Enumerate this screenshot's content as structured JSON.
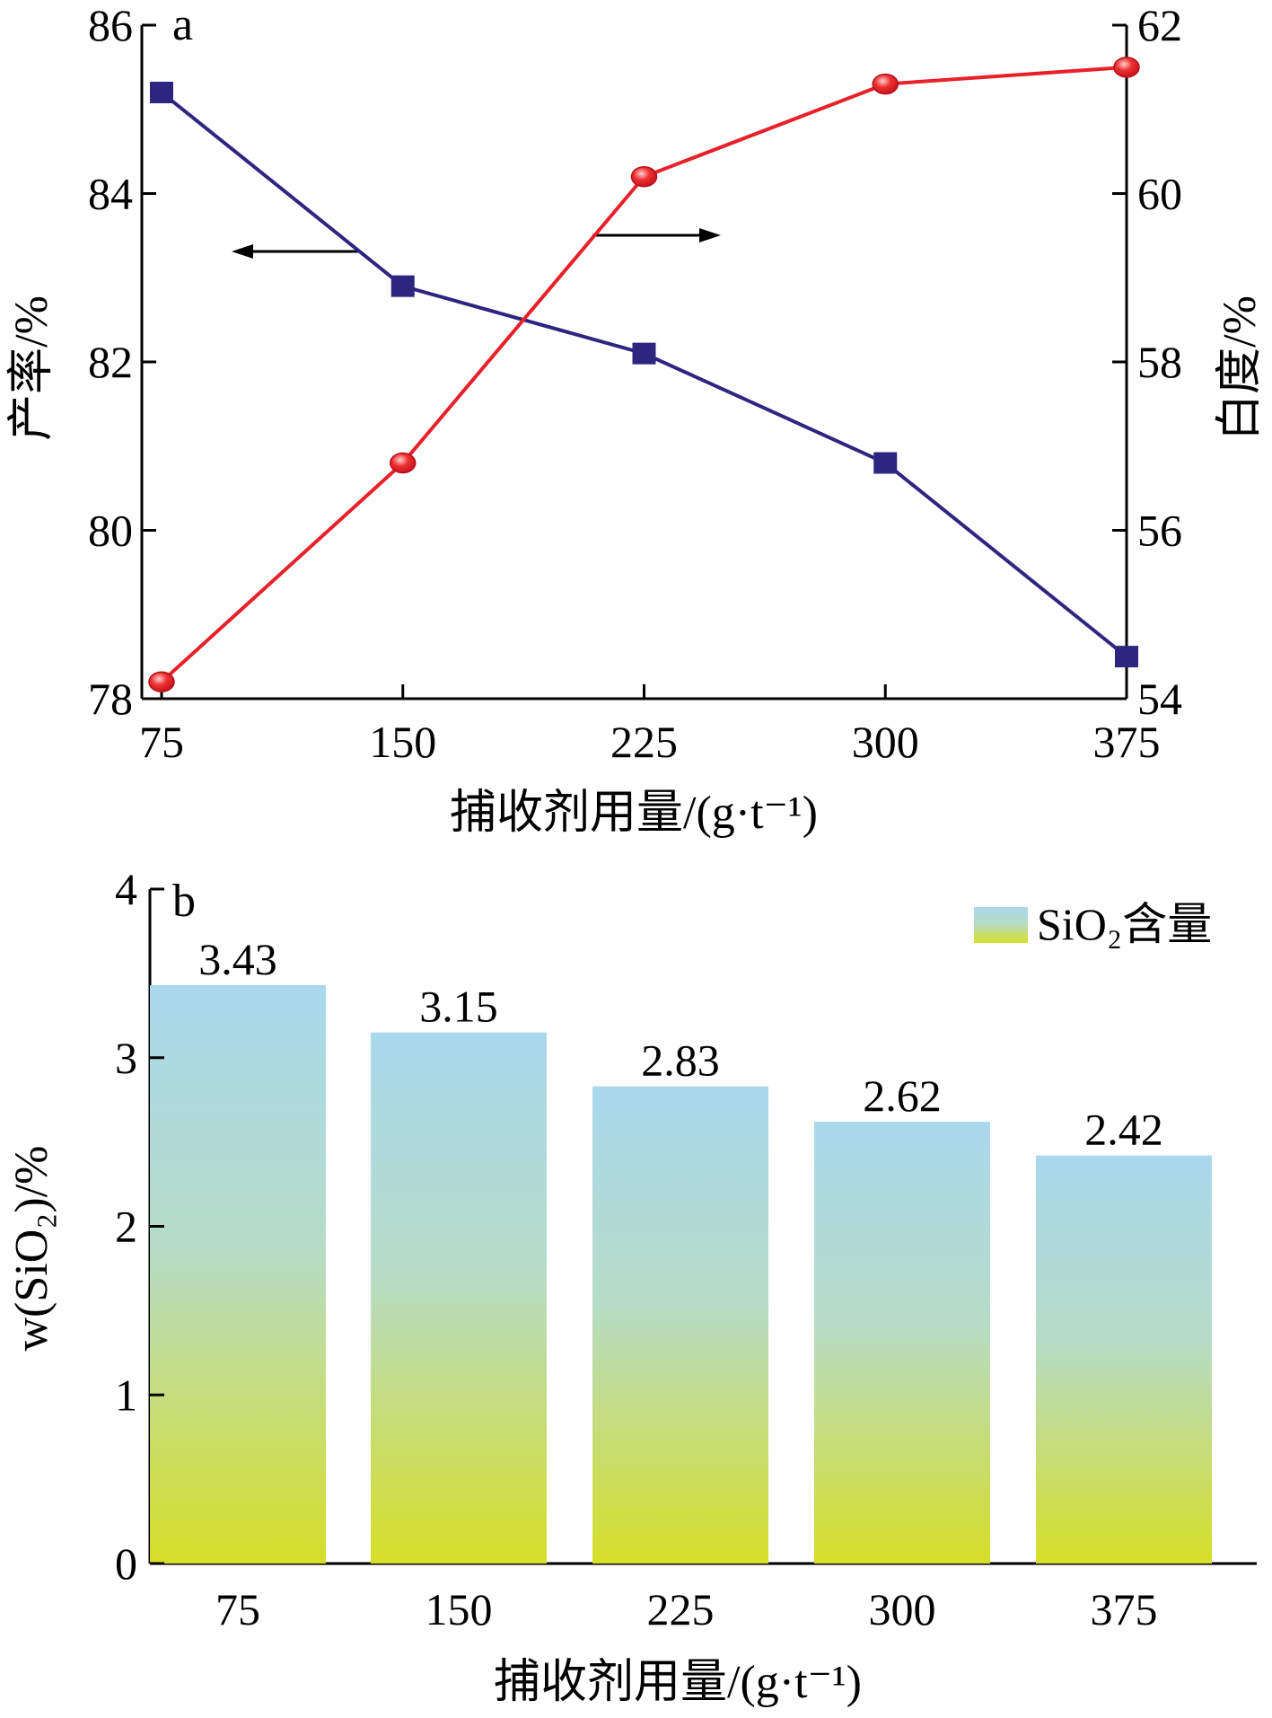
{
  "chart_data": [
    {
      "panel": "a",
      "type": "line",
      "x": [
        75,
        150,
        225,
        300,
        375
      ],
      "xticks": [
        "75",
        "150",
        "225",
        "300",
        "375"
      ],
      "xlabel": "捕收剂用量/(g·t⁻¹)",
      "ylabel_left": "产率/%",
      "ylabel_right": "白度/%",
      "ylim_left": [
        78,
        86
      ],
      "ylim_right": [
        54,
        62
      ],
      "yticks_left": [
        "78",
        "80",
        "82",
        "84",
        "86"
      ],
      "yticks_right": [
        "54",
        "56",
        "58",
        "60",
        "62"
      ],
      "grid": false,
      "series": [
        {
          "name": "",
          "axis": "left",
          "marker": "square",
          "color": "#2e2580",
          "values": [
            85.2,
            82.9,
            82.1,
            80.8,
            78.5
          ]
        },
        {
          "name": "",
          "axis": "right",
          "marker": "circle",
          "color": "#e8202a",
          "values": [
            54.2,
            56.8,
            60.2,
            61.3,
            61.5
          ]
        }
      ],
      "annotations": [
        {
          "type": "arrow",
          "direction": "left",
          "points_to": "left-axis"
        },
        {
          "type": "arrow",
          "direction": "right",
          "points_to": "right-axis"
        }
      ]
    },
    {
      "panel": "b",
      "type": "bar",
      "categories": [
        "75",
        "150",
        "225",
        "300",
        "375"
      ],
      "values": [
        3.43,
        3.15,
        2.83,
        2.62,
        2.42
      ],
      "data_labels": [
        "3.43",
        "3.15",
        "2.83",
        "2.62",
        "2.42"
      ],
      "xlabel": "捕收剂用量/(g·t⁻¹)",
      "ylabel": "w(SiO₂)/%",
      "ylim": [
        0,
        4
      ],
      "yticks": [
        "0",
        "1",
        "2",
        "3",
        "4"
      ],
      "legend": {
        "label": "SiO₂含量",
        "position": "top-right"
      },
      "gradient_top": "#aad8ec",
      "gradient_bottom": "#d6de28",
      "grid": false
    }
  ]
}
